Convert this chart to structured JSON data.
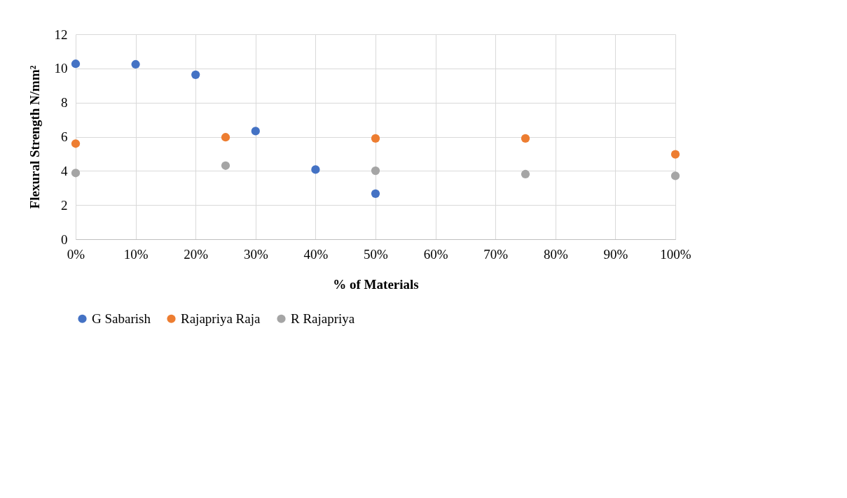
{
  "chart_data": {
    "type": "scatter",
    "xlabel": "% of Materials",
    "ylabel": "Flexural Strength N/mm²",
    "xlim": [
      0,
      100
    ],
    "ylim": [
      0,
      12
    ],
    "xticks": [
      {
        "value": 0,
        "label": "0%"
      },
      {
        "value": 10,
        "label": "10%"
      },
      {
        "value": 20,
        "label": "20%"
      },
      {
        "value": 30,
        "label": "30%"
      },
      {
        "value": 40,
        "label": "40%"
      },
      {
        "value": 50,
        "label": "50%"
      },
      {
        "value": 60,
        "label": "60%"
      },
      {
        "value": 70,
        "label": "70%"
      },
      {
        "value": 80,
        "label": "80%"
      },
      {
        "value": 90,
        "label": "90%"
      },
      {
        "value": 100,
        "label": "100%"
      }
    ],
    "yticks": [
      0,
      2,
      4,
      6,
      8,
      10,
      12
    ],
    "grid": true,
    "legend": "bottom",
    "marker": "circle",
    "series": [
      {
        "name": "G Sabarish",
        "color": "#4472c4",
        "x": [
          0,
          10,
          20,
          30,
          40,
          50
        ],
        "values": [
          10.27,
          10.24,
          9.63,
          6.33,
          4.08,
          2.67
        ]
      },
      {
        "name": "Rajapriya Raja",
        "color": "#ed7d31",
        "x": [
          0,
          25,
          50,
          75,
          100
        ],
        "values": [
          5.6,
          5.97,
          5.9,
          5.9,
          4.97
        ]
      },
      {
        "name": "R Rajapriya",
        "color": "#a5a5a5",
        "x": [
          0,
          25,
          50,
          75,
          100
        ],
        "values": [
          3.88,
          4.31,
          4.01,
          3.81,
          3.71
        ]
      }
    ]
  }
}
